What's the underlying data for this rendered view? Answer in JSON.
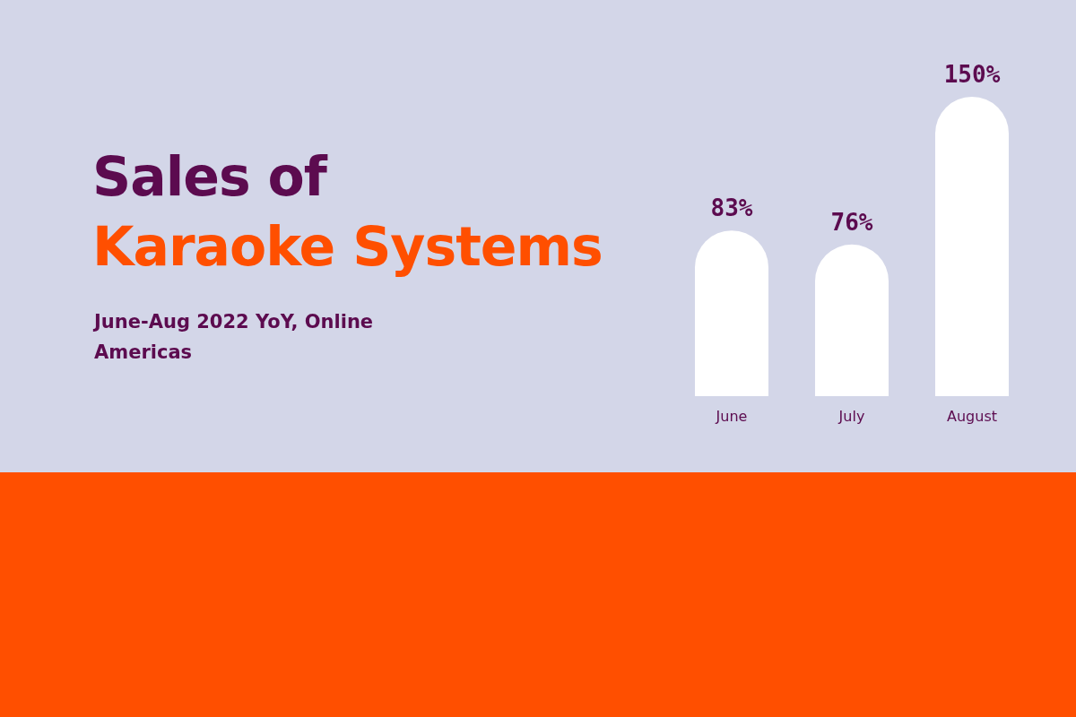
{
  "chart_data": {
    "type": "bar",
    "title": "Sales of\nKaraoke Systems",
    "subtitle": "June-Aug 2022 YoY, Online Americas",
    "categories": [
      "June",
      "July",
      "August"
    ],
    "values": [
      83,
      76,
      150
    ],
    "color": "#ffffff",
    "value_labels": [
      "83%",
      "76%",
      "150%"
    ]
  }
}
